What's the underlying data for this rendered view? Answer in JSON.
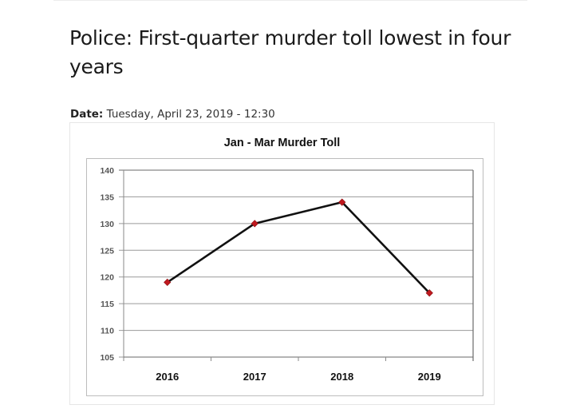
{
  "article": {
    "headline": "Police: First-quarter murder toll lowest in four years",
    "date_label": "Date:",
    "date_value": "Tuesday, April 23, 2019 - 12:30"
  },
  "chart_data": {
    "type": "line",
    "title": "Jan - Mar Murder Toll",
    "xlabel": "",
    "ylabel": "",
    "categories": [
      "2016",
      "2017",
      "2018",
      "2019"
    ],
    "values": [
      119,
      130,
      134,
      117
    ],
    "series": [
      {
        "name": "Murder Toll",
        "values": [
          119,
          130,
          134,
          117
        ]
      }
    ],
    "ylim": [
      105,
      140
    ],
    "yticks": [
      105,
      110,
      115,
      120,
      125,
      130,
      135,
      140
    ],
    "grid": true,
    "legend": "none",
    "colors": {
      "line": "#111111",
      "marker": "#c0191f",
      "grid": "#9a9a9a"
    }
  }
}
